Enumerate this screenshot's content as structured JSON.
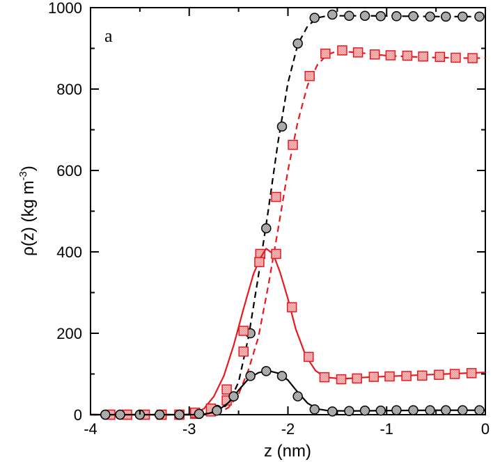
{
  "chart_data": {
    "type": "line",
    "title": "",
    "panel_label": "a",
    "xlabel": "z (nm)",
    "ylabel": {
      "main": "ρ(z)  (kg m",
      "superscript": "-3",
      "close": ")"
    },
    "xlim": [
      -4,
      0
    ],
    "ylim": [
      0,
      1000
    ],
    "xticks": [
      {
        "value": -4,
        "label": "-4"
      },
      {
        "value": -3,
        "label": "-3"
      },
      {
        "value": -2,
        "label": "-2"
      },
      {
        "value": -1,
        "label": "-1"
      },
      {
        "value": 0,
        "label": "0"
      }
    ],
    "yticks": [
      {
        "value": 0,
        "label": "0"
      },
      {
        "value": 200,
        "label": "200"
      },
      {
        "value": 400,
        "label": "400"
      },
      {
        "value": 600,
        "label": "600"
      },
      {
        "value": 800,
        "label": "800"
      },
      {
        "value": 1000,
        "label": "1000"
      }
    ],
    "grid": false,
    "series": [
      {
        "name": "black-dashed-circles",
        "color": "#000000",
        "fill": "#8a8a8a",
        "line_style": "dashed",
        "marker": "circle",
        "curve": [
          [
            -4,
            0
          ],
          [
            -3.0,
            0
          ],
          [
            -2.8,
            2
          ],
          [
            -2.7,
            8
          ],
          [
            -2.6,
            28
          ],
          [
            -2.5,
            80
          ],
          [
            -2.4,
            190
          ],
          [
            -2.3,
            340
          ],
          [
            -2.2,
            500
          ],
          [
            -2.1,
            670
          ],
          [
            -2.0,
            815
          ],
          [
            -1.9,
            910
          ],
          [
            -1.8,
            955
          ],
          [
            -1.7,
            975
          ],
          [
            -1.6,
            980
          ],
          [
            -1.5,
            980
          ],
          [
            -1.2,
            980
          ],
          [
            -0.8,
            979
          ],
          [
            -0.4,
            978
          ],
          [
            0,
            978
          ]
        ],
        "markers": [
          [
            -3.85,
            0
          ],
          [
            -3.7,
            0
          ],
          [
            -3.5,
            0
          ],
          [
            -3.3,
            0
          ],
          [
            -3.1,
            0
          ],
          [
            -2.9,
            2
          ],
          [
            -2.72,
            12
          ],
          [
            -2.55,
            45
          ],
          [
            -2.38,
            200
          ],
          [
            -2.22,
            458
          ],
          [
            -2.06,
            708
          ],
          [
            -1.9,
            912
          ],
          [
            -1.73,
            975
          ],
          [
            -1.55,
            983
          ],
          [
            -1.38,
            980
          ],
          [
            -1.22,
            980
          ],
          [
            -1.06,
            979
          ],
          [
            -0.9,
            979
          ],
          [
            -0.73,
            979
          ],
          [
            -0.56,
            978
          ],
          [
            -0.4,
            978
          ],
          [
            -0.23,
            978
          ],
          [
            -0.06,
            978
          ]
        ]
      },
      {
        "name": "red-dashed-squares",
        "color": "#e8191e",
        "fill": "#ee8888",
        "line_style": "dashed",
        "marker": "square",
        "curve": [
          [
            -4,
            0
          ],
          [
            -2.9,
            0
          ],
          [
            -2.7,
            4
          ],
          [
            -2.6,
            18
          ],
          [
            -2.5,
            50
          ],
          [
            -2.4,
            110
          ],
          [
            -2.3,
            190
          ],
          [
            -2.2,
            315
          ],
          [
            -2.1,
            455
          ],
          [
            -2.0,
            600
          ],
          [
            -1.9,
            720
          ],
          [
            -1.8,
            810
          ],
          [
            -1.7,
            860
          ],
          [
            -1.6,
            885
          ],
          [
            -1.5,
            893
          ],
          [
            -1.3,
            890
          ],
          [
            -1.0,
            882
          ],
          [
            -0.6,
            878
          ],
          [
            -0.2,
            876
          ],
          [
            0,
            876
          ]
        ],
        "markers": [
          [
            -3.8,
            0
          ],
          [
            -3.63,
            0
          ],
          [
            -3.45,
            0
          ],
          [
            -3.28,
            0
          ],
          [
            -3.1,
            0
          ],
          [
            -2.94,
            2
          ],
          [
            -2.78,
            8
          ],
          [
            -2.62,
            35
          ],
          [
            -2.45,
            155
          ],
          [
            -2.28,
            395
          ],
          [
            -2.12,
            535
          ],
          [
            -1.95,
            663
          ],
          [
            -1.78,
            832
          ],
          [
            -1.62,
            887
          ],
          [
            -1.45,
            895
          ],
          [
            -1.29,
            890
          ],
          [
            -1.12,
            885
          ],
          [
            -0.96,
            883
          ],
          [
            -0.79,
            882
          ],
          [
            -0.63,
            880
          ],
          [
            -0.46,
            879
          ],
          [
            -0.3,
            877
          ],
          [
            -0.13,
            876
          ]
        ]
      },
      {
        "name": "red-solid-squares",
        "color": "#e8191e",
        "fill": "#ee8888",
        "line_style": "solid",
        "marker": "square",
        "curve": [
          [
            -4,
            0
          ],
          [
            -3.05,
            0
          ],
          [
            -2.95,
            2
          ],
          [
            -2.85,
            15
          ],
          [
            -2.75,
            45
          ],
          [
            -2.65,
            95
          ],
          [
            -2.55,
            170
          ],
          [
            -2.45,
            260
          ],
          [
            -2.35,
            345
          ],
          [
            -2.28,
            385
          ],
          [
            -2.22,
            408
          ],
          [
            -2.15,
            395
          ],
          [
            -2.08,
            350
          ],
          [
            -2.0,
            285
          ],
          [
            -1.92,
            210
          ],
          [
            -1.82,
            145
          ],
          [
            -1.72,
            108
          ],
          [
            -1.62,
            92
          ],
          [
            -1.45,
            88
          ],
          [
            -1.2,
            92
          ],
          [
            -0.8,
            96
          ],
          [
            -0.4,
            100
          ],
          [
            0,
            104
          ]
        ],
        "markers": [
          [
            -3.8,
            0
          ],
          [
            -3.63,
            0
          ],
          [
            -3.45,
            0
          ],
          [
            -3.28,
            0
          ],
          [
            -3.1,
            0
          ],
          [
            -2.94,
            5
          ],
          [
            -2.78,
            15
          ],
          [
            -2.62,
            62
          ],
          [
            -2.45,
            206
          ],
          [
            -2.29,
            375
          ],
          [
            -2.12,
            395
          ],
          [
            -1.96,
            264
          ],
          [
            -1.79,
            142
          ],
          [
            -1.63,
            92
          ],
          [
            -1.46,
            87
          ],
          [
            -1.3,
            89
          ],
          [
            -1.13,
            93
          ],
          [
            -0.97,
            94
          ],
          [
            -0.8,
            95
          ],
          [
            -0.64,
            96
          ],
          [
            -0.47,
            98
          ],
          [
            -0.31,
            100
          ],
          [
            -0.14,
            102
          ]
        ]
      },
      {
        "name": "black-solid-circles",
        "color": "#000000",
        "fill": "#8a8a8a",
        "line_style": "solid",
        "marker": "circle",
        "curve": [
          [
            -4,
            0
          ],
          [
            -2.9,
            0
          ],
          [
            -2.8,
            3
          ],
          [
            -2.7,
            12
          ],
          [
            -2.6,
            30
          ],
          [
            -2.5,
            60
          ],
          [
            -2.4,
            88
          ],
          [
            -2.3,
            103
          ],
          [
            -2.2,
            108
          ],
          [
            -2.1,
            102
          ],
          [
            -2.0,
            85
          ],
          [
            -1.9,
            55
          ],
          [
            -1.8,
            28
          ],
          [
            -1.7,
            14
          ],
          [
            -1.6,
            10
          ],
          [
            -1.4,
            9
          ],
          [
            -1.0,
            10
          ],
          [
            -0.5,
            11
          ],
          [
            0,
            11
          ]
        ],
        "markers": [
          [
            -3.85,
            0
          ],
          [
            -3.7,
            0
          ],
          [
            -3.5,
            0
          ],
          [
            -3.3,
            0
          ],
          [
            -3.1,
            0
          ],
          [
            -2.9,
            2
          ],
          [
            -2.72,
            10
          ],
          [
            -2.55,
            45
          ],
          [
            -2.38,
            95
          ],
          [
            -2.22,
            107
          ],
          [
            -2.06,
            95
          ],
          [
            -1.9,
            45
          ],
          [
            -1.73,
            13
          ],
          [
            -1.55,
            8
          ],
          [
            -1.38,
            9
          ],
          [
            -1.22,
            10
          ],
          [
            -1.06,
            10
          ],
          [
            -0.9,
            11
          ],
          [
            -0.73,
            11
          ],
          [
            -0.56,
            11
          ],
          [
            -0.4,
            11
          ],
          [
            -0.23,
            11
          ],
          [
            -0.06,
            11
          ]
        ]
      }
    ]
  }
}
